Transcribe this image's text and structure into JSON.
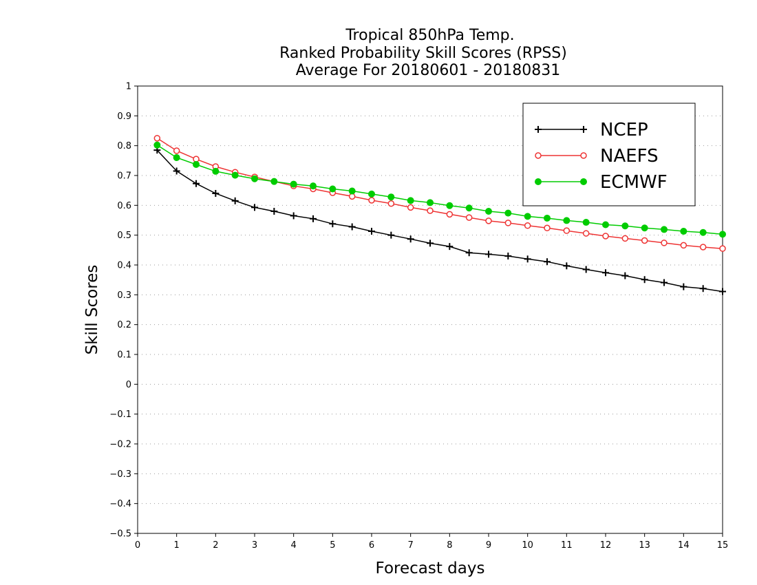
{
  "chart_data": {
    "type": "line",
    "title": [
      "Tropical 850hPa Temp.",
      "Ranked Probability Skill Scores (RPSS)",
      "Average For 20180601 - 20180831"
    ],
    "xlabel": "Forecast days",
    "ylabel": "Skill Scores",
    "xlim": [
      0,
      15
    ],
    "ylim": [
      -0.5,
      1
    ],
    "x_ticks": [
      0,
      1,
      2,
      3,
      4,
      5,
      6,
      7,
      8,
      9,
      10,
      11,
      12,
      13,
      14,
      15
    ],
    "y_ticks": [
      -0.5,
      -0.4,
      -0.3,
      -0.2,
      -0.1,
      0,
      0.1,
      0.2,
      0.3,
      0.4,
      0.5,
      0.6,
      0.7,
      0.8,
      0.9,
      1
    ],
    "x_tick_labels": [
      "0",
      "1",
      "2",
      "3",
      "4",
      "5",
      "6",
      "7",
      "8",
      "9",
      "10",
      "11",
      "12",
      "13",
      "14",
      "15"
    ],
    "y_tick_labels": [
      "−0.5",
      "−0.4",
      "−0.3",
      "−0.2",
      "−0.1",
      "0",
      "0.1",
      "0.2",
      "0.3",
      "0.4",
      "0.5",
      "0.6",
      "0.7",
      "0.8",
      "0.9",
      "1"
    ],
    "grid": "horizontal dotted",
    "legend_position": "top-right",
    "x": [
      0.5,
      1,
      1.5,
      2,
      2.5,
      3,
      3.5,
      4,
      4.5,
      5,
      5.5,
      6,
      6.5,
      7,
      7.5,
      8,
      8.5,
      9,
      9.5,
      10,
      10.5,
      11,
      11.5,
      12,
      12.5,
      13,
      13.5,
      14,
      14.5,
      15
    ],
    "series": [
      {
        "name": "NCEP",
        "color": "#000000",
        "marker": "plus",
        "values": [
          0.785,
          0.715,
          0.673,
          0.64,
          0.615,
          0.593,
          0.58,
          0.565,
          0.555,
          0.538,
          0.528,
          0.513,
          0.5,
          0.487,
          0.473,
          0.462,
          0.441,
          0.436,
          0.43,
          0.42,
          0.411,
          0.397,
          0.385,
          0.374,
          0.364,
          0.351,
          0.341,
          0.327,
          0.321,
          0.311
        ]
      },
      {
        "name": "NAEFS",
        "color": "#ee3333",
        "marker": "open-circle",
        "values": [
          0.825,
          0.783,
          0.755,
          0.73,
          0.711,
          0.695,
          0.68,
          0.665,
          0.655,
          0.642,
          0.63,
          0.617,
          0.606,
          0.593,
          0.582,
          0.57,
          0.559,
          0.548,
          0.541,
          0.532,
          0.524,
          0.515,
          0.506,
          0.497,
          0.489,
          0.482,
          0.474,
          0.466,
          0.46,
          0.455
        ]
      },
      {
        "name": "ECMWF",
        "color": "#00cc00",
        "marker": "filled-circle",
        "values": [
          0.802,
          0.76,
          0.737,
          0.714,
          0.701,
          0.689,
          0.68,
          0.671,
          0.665,
          0.655,
          0.648,
          0.638,
          0.628,
          0.616,
          0.609,
          0.599,
          0.591,
          0.58,
          0.574,
          0.563,
          0.557,
          0.549,
          0.543,
          0.535,
          0.531,
          0.524,
          0.519,
          0.513,
          0.509,
          0.503
        ]
      }
    ]
  }
}
